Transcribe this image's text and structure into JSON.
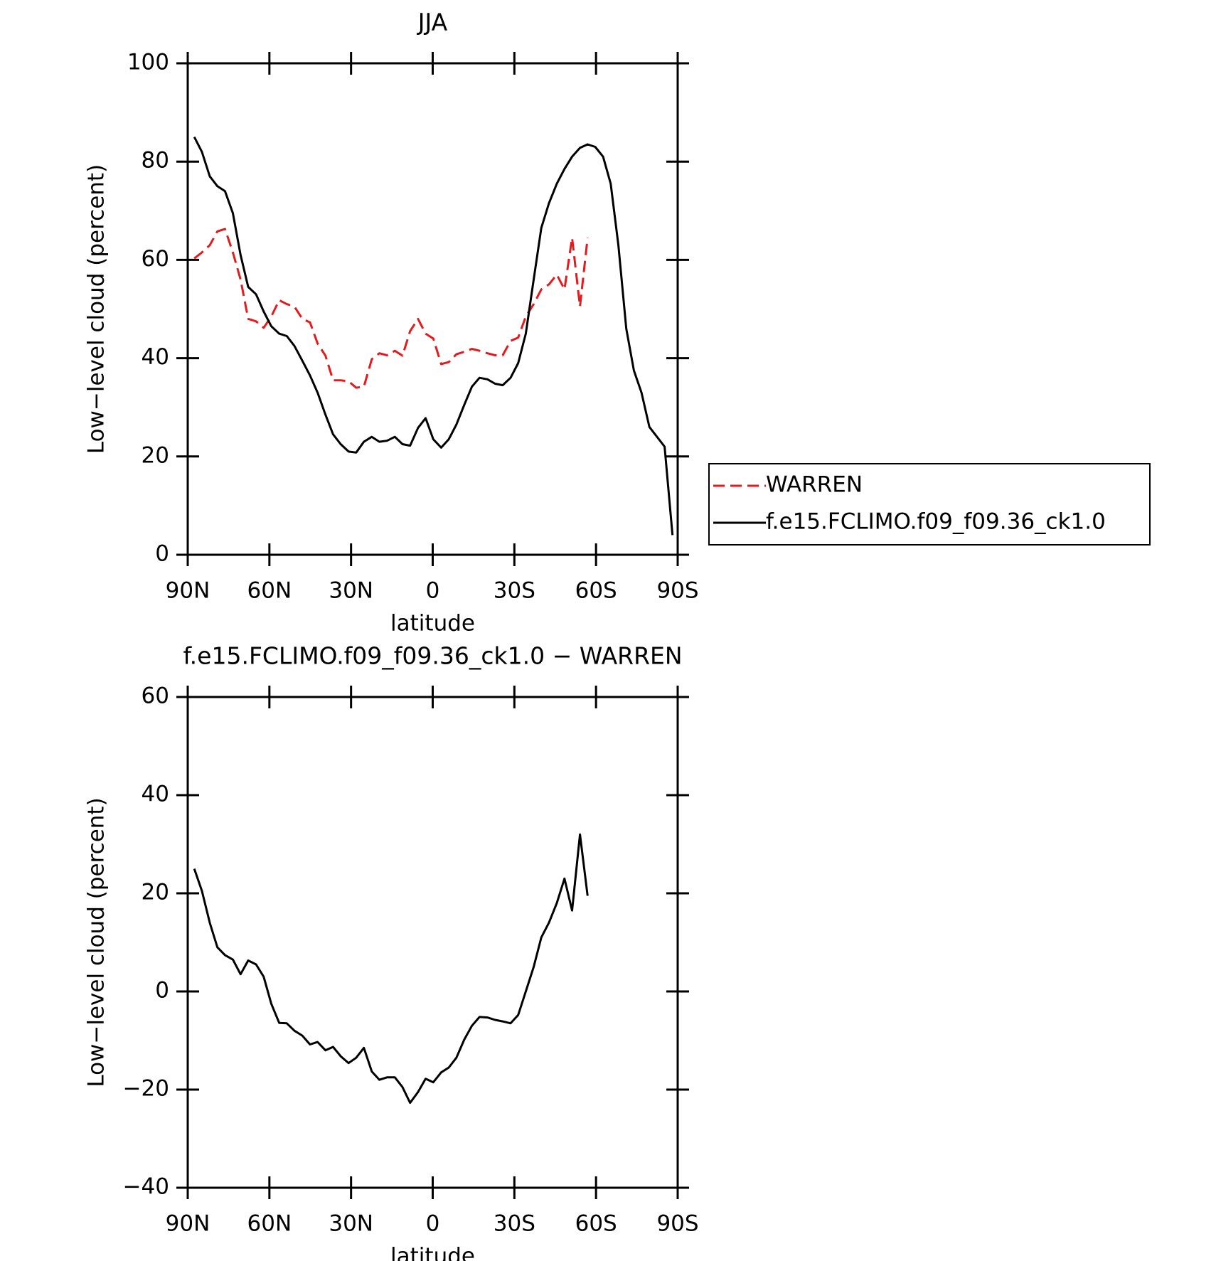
{
  "chart_data": [
    {
      "type": "line",
      "title": "JJA",
      "xlabel": "latitude",
      "ylabel": "Low−level cloud (percent)",
      "x": [
        87.6,
        84.8,
        81.9,
        79.1,
        76.3,
        73.4,
        70.6,
        67.8,
        64.9,
        62.1,
        59.3,
        56.4,
        53.6,
        50.8,
        47.9,
        45.1,
        42.3,
        39.4,
        36.6,
        33.8,
        30.9,
        28.1,
        25.3,
        22.4,
        19.6,
        16.8,
        13.9,
        11.1,
        8.3,
        5.4,
        2.6,
        -0.2,
        -3.1,
        -5.9,
        -8.7,
        -11.6,
        -14.4,
        -17.2,
        -20.1,
        -22.9,
        -25.7,
        -28.6,
        -31.4,
        -34.2,
        -37.1,
        -39.9,
        -42.7,
        -45.6,
        -48.4,
        -51.2,
        -54.1,
        -56.9,
        -59.7,
        -62.6,
        -65.4,
        -68.2,
        -71.1,
        -73.9,
        -76.7,
        -79.6,
        -82.4,
        -85.2,
        -88.1
      ],
      "series": [
        {
          "name": "WARREN",
          "color": "#e41a1c",
          "dash": true,
          "values": [
            60.3,
            61.5,
            63,
            65.8,
            66.3,
            61.5,
            56,
            48,
            47.5,
            46.2,
            48.5,
            51.8,
            51,
            50.5,
            48,
            47.3,
            43,
            40.5,
            35.5,
            35.5,
            35.3,
            34,
            34.2,
            39.8,
            41,
            40.6,
            41.5,
            40.5,
            45.5,
            48,
            45,
            44,
            38.8,
            39.2,
            40.8,
            41.3,
            41.9,
            41.5,
            41,
            40.6,
            40.6,
            43.5,
            44.2,
            48.5,
            51,
            54,
            55,
            57,
            54,
            64.5,
            50.5,
            64.5,
            null,
            null,
            null,
            null,
            null,
            null,
            null,
            null,
            null,
            null,
            null
          ]
        },
        {
          "name": "f.e15.FCLIMO.f09_f09.36_ck1.0",
          "color": "#000000",
          "dash": false,
          "values": [
            85,
            82,
            77,
            75,
            74,
            69.5,
            61,
            54.5,
            53,
            49.5,
            46.5,
            45,
            44.5,
            42.5,
            39.5,
            36.5,
            33,
            28.5,
            24.5,
            22.5,
            21,
            20.8,
            23,
            24,
            23,
            23.2,
            24,
            22.5,
            22.2,
            25.8,
            27.8,
            23.5,
            21.8,
            23.5,
            26.5,
            30.5,
            34.2,
            36,
            35.7,
            34.8,
            34.5,
            36,
            39,
            45,
            56,
            66.5,
            71.5,
            75.5,
            78.5,
            81,
            82.8,
            83.5,
            83,
            81,
            75.5,
            63,
            46,
            37.5,
            33,
            26,
            24,
            22,
            4
          ]
        }
      ],
      "xlim": [
        90,
        -90
      ],
      "xticks": [
        {
          "value": 90,
          "label": "90N"
        },
        {
          "value": 60,
          "label": "60N"
        },
        {
          "value": 30,
          "label": "30N"
        },
        0,
        {
          "value": -30,
          "label": "30S"
        },
        {
          "value": -60,
          "label": "60S"
        },
        {
          "value": -90,
          "label": "90S"
        }
      ],
      "ylim": [
        0,
        100
      ],
      "yticks": [
        0,
        20,
        40,
        60,
        80,
        100
      ],
      "legend": "right"
    },
    {
      "type": "line",
      "title": "f.e15.FCLIMO.f09_f09.36_ck1.0 − WARREN",
      "xlabel": "latitude",
      "ylabel": "Low−level cloud (percent)",
      "x": [
        87.6,
        84.8,
        81.9,
        79.1,
        76.3,
        73.4,
        70.6,
        67.8,
        64.9,
        62.1,
        59.3,
        56.4,
        53.6,
        50.8,
        47.9,
        45.1,
        42.3,
        39.4,
        36.6,
        33.8,
        30.9,
        28.1,
        25.3,
        22.4,
        19.6,
        16.8,
        13.9,
        11.1,
        8.3,
        5.4,
        2.6,
        -0.2,
        -3.1,
        -5.9,
        -8.7,
        -11.6,
        -14.4,
        -17.2,
        -20.1,
        -22.9,
        -25.7,
        -28.6,
        -31.4,
        -34.2,
        -37.1,
        -39.9,
        -42.7,
        -45.6,
        -48.4,
        -51.2,
        -54.1,
        -56.9
      ],
      "series": [
        {
          "color": "#000000",
          "dash": false,
          "values": [
            25,
            20.5,
            14,
            9,
            7.4,
            6.5,
            3.5,
            6.3,
            5.5,
            3,
            -2.5,
            -6.4,
            -6.5,
            -8,
            -9,
            -10.8,
            -10.3,
            -12,
            -11.3,
            -13.2,
            -14.6,
            -13.5,
            -11.5,
            -16.3,
            -18,
            -17.5,
            -17.5,
            -19.5,
            -22.7,
            -20.5,
            -17.8,
            -18.5,
            -16.5,
            -15.5,
            -13.5,
            -9.8,
            -7,
            -5.2,
            -5.3,
            -5.8,
            -6.1,
            -6.5,
            -4.8,
            0,
            5,
            11,
            14,
            18,
            23,
            16.5,
            32,
            19.5
          ]
        }
      ],
      "xlim": [
        90,
        -90
      ],
      "xticks": [
        {
          "value": 90,
          "label": "90N"
        },
        {
          "value": 60,
          "label": "60N"
        },
        {
          "value": 30,
          "label": "30N"
        },
        0,
        {
          "value": -30,
          "label": "30S"
        },
        {
          "value": -60,
          "label": "60S"
        },
        {
          "value": -90,
          "label": "90S"
        }
      ],
      "ylim": [
        -40,
        60
      ],
      "yticks": [
        {
          "value": -40,
          "label": "−40"
        },
        {
          "value": -20,
          "label": "−20"
        },
        0,
        20,
        40,
        60
      ]
    }
  ]
}
